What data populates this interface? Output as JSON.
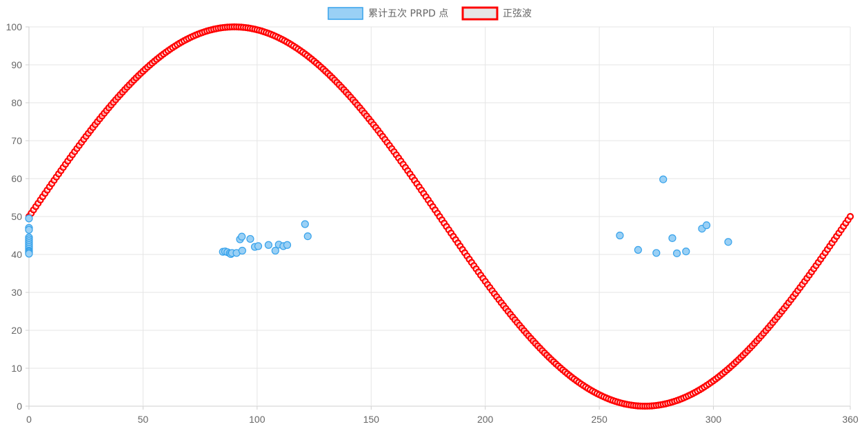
{
  "chart_data": {
    "type": "scatter",
    "xlim": [
      0,
      360
    ],
    "ylim": [
      0,
      100
    ],
    "x_ticks": [
      0,
      50,
      100,
      150,
      200,
      250,
      300,
      360
    ],
    "y_ticks": [
      0,
      10,
      20,
      30,
      40,
      50,
      60,
      70,
      80,
      90,
      100
    ],
    "grid": true,
    "legend_position": "top-center",
    "series": [
      {
        "name": "累计五次 PRPD 点",
        "kind": "scatter",
        "color": "#36a2eb",
        "fill": "#9ad0f5",
        "points": [
          [
            0,
            49.5
          ],
          [
            0,
            47
          ],
          [
            0,
            46.5
          ],
          [
            0,
            44.5
          ],
          [
            0,
            44
          ],
          [
            0,
            43.5
          ],
          [
            0,
            43
          ],
          [
            0,
            42.5
          ],
          [
            0,
            42
          ],
          [
            0,
            41.5
          ],
          [
            0,
            41
          ],
          [
            0,
            40.8
          ],
          [
            0,
            40.5
          ],
          [
            0,
            40.2
          ],
          [
            85,
            40.7
          ],
          [
            86,
            40.8
          ],
          [
            87,
            40.6
          ],
          [
            88,
            40.3
          ],
          [
            88.5,
            40.1
          ],
          [
            89,
            40.4
          ],
          [
            91,
            40.4
          ],
          [
            92.5,
            44
          ],
          [
            93.3,
            44.7
          ],
          [
            93.5,
            41
          ],
          [
            97,
            44.1
          ],
          [
            99,
            42
          ],
          [
            100.5,
            42.2
          ],
          [
            105,
            42.5
          ],
          [
            108,
            41
          ],
          [
            109.5,
            42.6
          ],
          [
            111.5,
            42.2
          ],
          [
            113.2,
            42.5
          ],
          [
            121,
            48
          ],
          [
            122.2,
            44.8
          ],
          [
            259,
            45
          ],
          [
            267,
            41.2
          ],
          [
            275,
            40.4
          ],
          [
            278,
            59.8
          ],
          [
            282,
            44.3
          ],
          [
            284,
            40.3
          ],
          [
            288,
            40.8
          ],
          [
            295,
            46.8
          ],
          [
            297,
            47.7
          ],
          [
            306.5,
            43.3
          ]
        ]
      },
      {
        "name": "正弦波",
        "kind": "sine",
        "color": "#ff0000",
        "fill": "#e6e6e6",
        "amplitude": 50,
        "offset": 50,
        "x_start": 0,
        "x_end": 360,
        "x_step": 1
      }
    ]
  }
}
